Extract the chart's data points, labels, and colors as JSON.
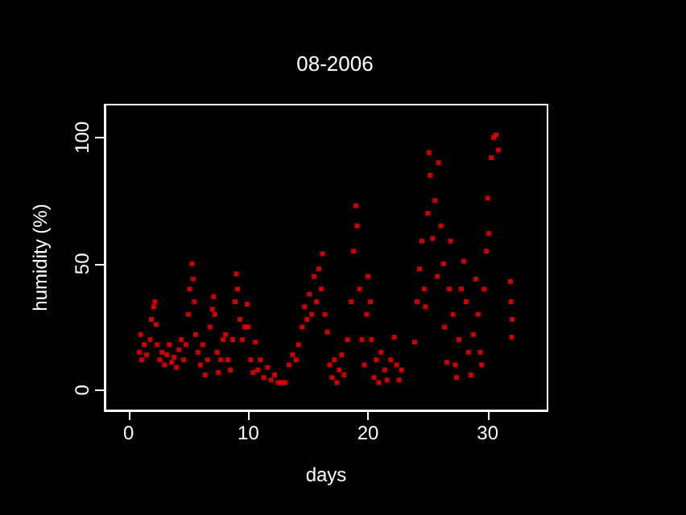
{
  "chart_data": {
    "type": "scatter",
    "title": "08-2006",
    "xlabel": "days",
    "ylabel": "humidity (%)",
    "xlim": [
      -2,
      35
    ],
    "xticks": [
      0,
      10,
      20,
      30
    ],
    "ylim": [
      -8,
      113
    ],
    "yticks": [
      0,
      50,
      100
    ],
    "grid": false,
    "marker": "square",
    "series": [
      {
        "color": "#ff0000",
        "x": [
          0.9,
          1.0,
          1.1,
          1.3,
          1.5,
          1.8,
          1.9,
          2.1,
          2.2,
          2.3,
          2.4,
          2.6,
          2.8,
          3.0,
          3.2,
          3.4,
          3.6,
          3.8,
          4.0,
          4.2,
          4.4,
          4.6,
          4.8,
          5.0,
          5.1,
          5.3,
          5.4,
          5.5,
          5.6,
          5.8,
          6.0,
          6.2,
          6.4,
          6.6,
          6.8,
          7.0,
          7.1,
          7.2,
          7.4,
          7.5,
          7.7,
          7.9,
          8.1,
          8.3,
          8.5,
          8.7,
          8.9,
          9.0,
          9.1,
          9.3,
          9.5,
          9.7,
          9.9,
          10.0,
          10.2,
          10.4,
          10.6,
          10.8,
          11.0,
          11.3,
          11.6,
          11.9,
          12.2,
          12.5,
          12.8,
          13.1,
          13.4,
          13.7,
          14.0,
          14.2,
          14.5,
          14.7,
          14.9,
          15.1,
          15.3,
          15.5,
          15.7,
          15.9,
          16.1,
          16.2,
          16.4,
          16.6,
          16.8,
          17.0,
          17.2,
          17.4,
          17.6,
          17.8,
          18.0,
          18.3,
          18.6,
          18.8,
          19.0,
          19.1,
          19.3,
          19.5,
          19.7,
          19.9,
          20.0,
          20.2,
          20.3,
          20.5,
          20.7,
          20.9,
          21.1,
          21.4,
          21.6,
          21.9,
          22.2,
          22.4,
          22.6,
          22.8,
          23.9,
          24.1,
          24.3,
          24.5,
          24.7,
          24.8,
          25.0,
          25.1,
          25.2,
          25.4,
          25.6,
          25.8,
          25.9,
          26.1,
          26.3,
          26.4,
          26.6,
          26.8,
          26.9,
          27.1,
          27.3,
          27.4,
          27.6,
          27.8,
          28.0,
          28.2,
          28.4,
          28.6,
          28.8,
          29.0,
          29.2,
          29.4,
          29.5,
          29.7,
          29.9,
          30.0,
          30.1,
          30.3,
          30.5,
          30.7,
          30.9,
          31.9,
          31.95,
          32.0,
          32.05
        ],
        "values": [
          15,
          22,
          12,
          18,
          14,
          20,
          28,
          33,
          35,
          26,
          18,
          12,
          15,
          10,
          14,
          18,
          11,
          13,
          9,
          16,
          20,
          12,
          18,
          30,
          40,
          50,
          44,
          35,
          22,
          15,
          10,
          18,
          6,
          12,
          25,
          32,
          37,
          30,
          15,
          7,
          12,
          20,
          22,
          12,
          8,
          20,
          35,
          46,
          40,
          28,
          20,
          25,
          34,
          25,
          12,
          7,
          19,
          8,
          12,
          5,
          9,
          4,
          6,
          3,
          3,
          3,
          10,
          14,
          12,
          18,
          25,
          33,
          28,
          38,
          30,
          45,
          35,
          48,
          40,
          54,
          30,
          23,
          10,
          5,
          12,
          3,
          8,
          14,
          6,
          20,
          35,
          55,
          73,
          65,
          40,
          20,
          10,
          30,
          45,
          35,
          20,
          5,
          12,
          3,
          15,
          8,
          4,
          12,
          21,
          10,
          4,
          8,
          19,
          35,
          48,
          59,
          40,
          33,
          70,
          94,
          85,
          60,
          75,
          45,
          90,
          65,
          50,
          25,
          11,
          40,
          59,
          30,
          10,
          5,
          20,
          40,
          51,
          35,
          15,
          6,
          22,
          44,
          30,
          15,
          10,
          40,
          55,
          76,
          62,
          92,
          100,
          101,
          95,
          43,
          35,
          21,
          28
        ]
      }
    ]
  }
}
